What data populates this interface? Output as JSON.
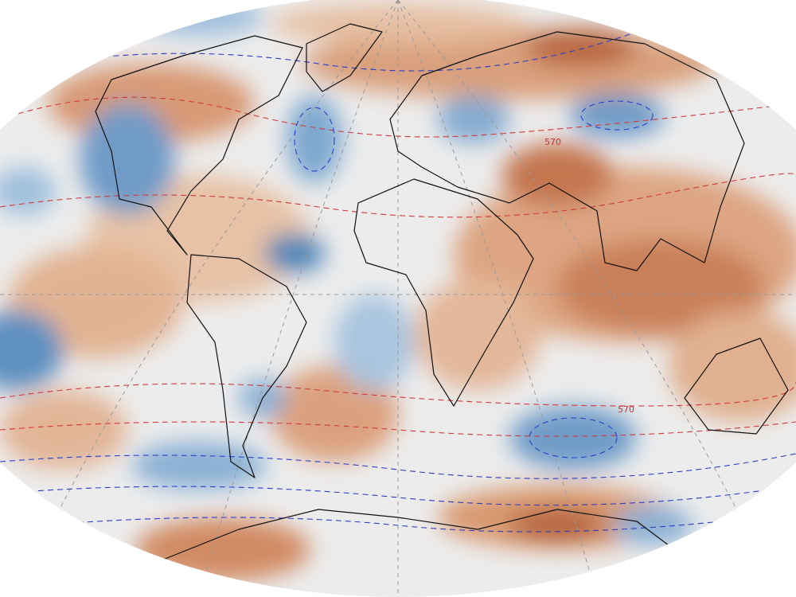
{
  "contour_labels": [
    "570",
    "570"
  ]
}
